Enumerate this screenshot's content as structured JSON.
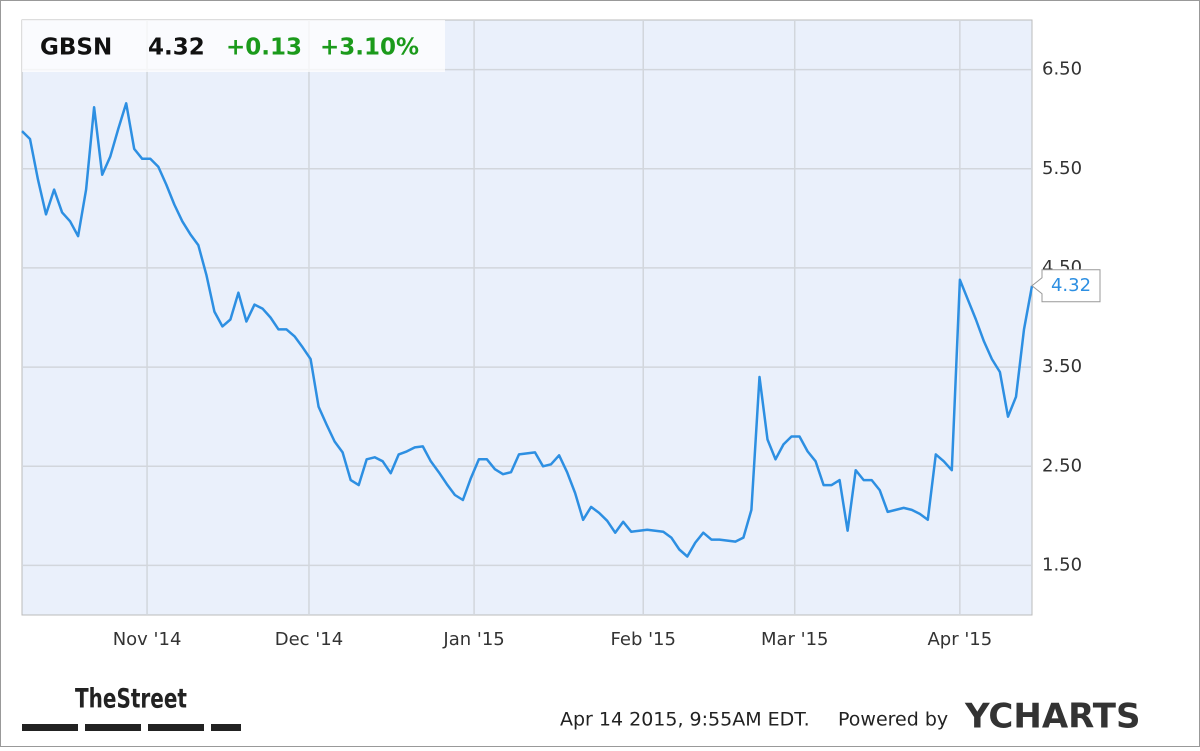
{
  "chart_data": {
    "type": "line",
    "header": {
      "symbol": "GBSN",
      "change": "+0.13",
      "change_percent": "+3.10%"
    },
    "footer": {
      "brand": "TheStreet",
      "timestamp": "Apr 14 2015, 9:55AM EDT.",
      "powered_by": "Powered by",
      "provider": "YCHARTS"
    },
    "color": "#2d8fe2",
    "values": [
      5.88,
      5.8,
      5.39,
      5.04,
      5.29,
      5.06,
      4.97,
      4.82,
      5.29,
      6.12,
      5.44,
      5.62,
      5.9,
      6.16,
      5.7,
      5.6,
      5.6,
      5.52,
      5.34,
      5.14,
      4.97,
      4.84,
      4.73,
      4.43,
      4.06,
      3.91,
      3.98,
      4.25,
      3.96,
      4.13,
      4.09,
      4.0,
      3.88,
      3.88,
      3.81,
      3.7,
      3.58,
      3.1,
      2.92,
      2.75,
      2.64,
      2.36,
      2.31,
      2.57,
      2.59,
      2.55,
      2.43,
      2.62,
      2.65,
      2.69,
      2.7,
      2.55,
      2.44,
      2.32,
      2.21,
      2.16,
      2.38,
      2.57,
      2.57,
      2.47,
      2.42,
      2.44,
      2.62,
      2.63,
      2.64,
      2.5,
      2.52,
      2.61,
      2.44,
      2.23,
      1.96,
      2.09,
      2.03,
      1.95,
      1.83,
      1.94,
      1.84,
      1.85,
      1.86,
      1.85,
      1.84,
      1.78,
      1.66,
      1.59,
      1.73,
      1.83,
      1.76,
      1.76,
      1.75,
      1.74,
      1.78,
      2.06,
      3.4,
      2.77,
      2.57,
      2.72,
      2.8,
      2.8,
      2.65,
      2.55,
      2.31,
      2.31,
      2.36,
      1.85,
      2.46,
      2.36,
      2.36,
      2.26,
      2.04,
      2.06,
      2.08,
      2.06,
      2.02,
      1.96,
      2.62,
      2.55,
      2.46,
      4.38,
      4.18,
      3.98,
      3.76,
      3.58,
      3.45,
      3.0,
      3.2,
      3.88,
      4.32
    ],
    "xlim": [
      0,
      126
    ],
    "xticks": [
      {
        "value": 15.6,
        "label": "Nov '14"
      },
      {
        "value": 35.8,
        "label": "Dec '14"
      },
      {
        "value": 56.4,
        "label": "Jan '15"
      },
      {
        "value": 77.5,
        "label": "Feb '15"
      },
      {
        "value": 96.4,
        "label": "Mar '15"
      },
      {
        "value": 117,
        "label": "Apr '15"
      }
    ],
    "ylim": [
      1.0,
      7.0
    ],
    "yticks": [
      {
        "value": 1.5,
        "label": "1.50"
      },
      {
        "value": 2.5,
        "label": "2.50"
      },
      {
        "value": 3.5,
        "label": "3.50"
      },
      {
        "value": 4.5,
        "label": "4.50"
      },
      {
        "value": 5.5,
        "label": "5.50"
      },
      {
        "value": 6.5,
        "label": "6.50"
      }
    ],
    "grid": true
  }
}
